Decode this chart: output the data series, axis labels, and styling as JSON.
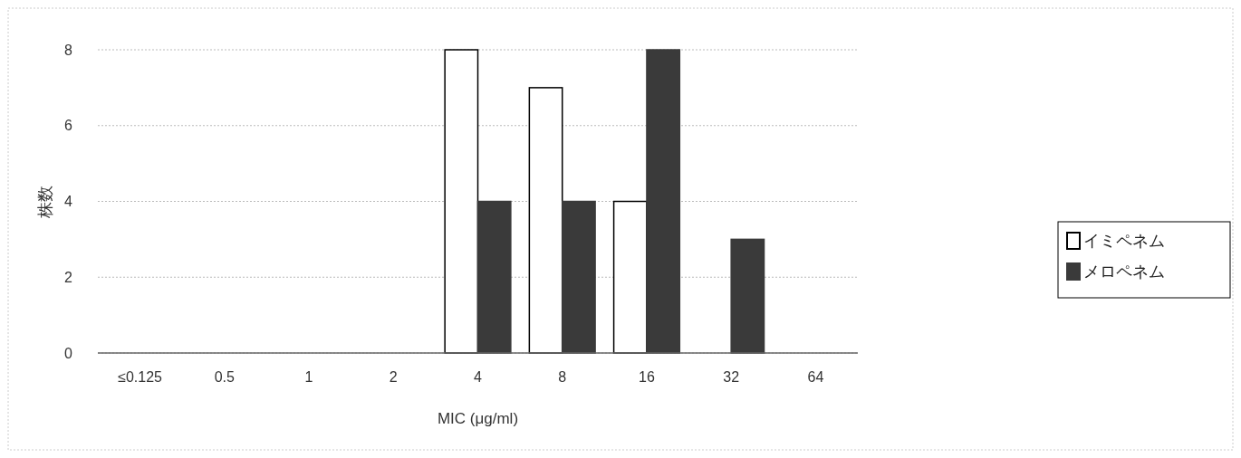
{
  "chart_data": {
    "type": "bar",
    "xlabel": "MIC (μg/ml)",
    "ylabel": "株数",
    "categories": [
      "≤0.125",
      "0.5",
      "1",
      "2",
      "4",
      "8",
      "16",
      "32",
      "64"
    ],
    "series": [
      {
        "name": "イミペネム",
        "color": "#ffffff",
        "values": [
          0,
          0,
          0,
          0,
          8,
          7,
          4,
          0,
          0
        ]
      },
      {
        "name": "メロペネム",
        "color": "#3a3a3a",
        "values": [
          0,
          0,
          0,
          0,
          4,
          4,
          8,
          3,
          0
        ]
      }
    ],
    "ylim": [
      0,
      8
    ],
    "yticks": [
      0,
      2,
      4,
      6,
      8
    ],
    "grid": "y",
    "legend": "right"
  }
}
